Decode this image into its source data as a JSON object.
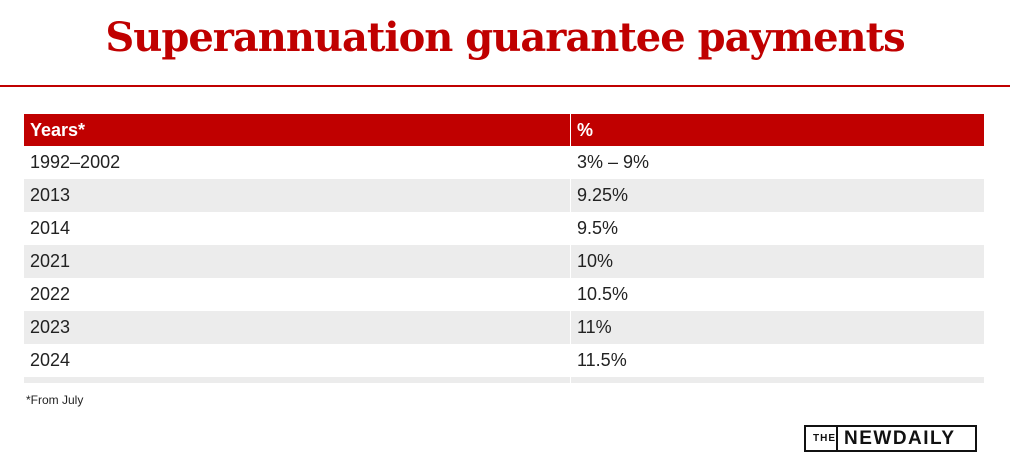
{
  "title": "Superannuation guarantee payments",
  "chart_data": {
    "type": "table",
    "columns": [
      "Years*",
      "%"
    ],
    "rows": [
      [
        "1992–2002",
        "3% – 9%"
      ],
      [
        "2013",
        "9.25%"
      ],
      [
        "2014",
        "9.5%"
      ],
      [
        "2021",
        "10%"
      ],
      [
        "2022",
        "10.5%"
      ],
      [
        "2023",
        "11%"
      ],
      [
        "2024",
        "11.5%"
      ]
    ]
  },
  "footnote": "*From July",
  "logo": {
    "prefix": "THE",
    "name": "NEWDAILY"
  },
  "colors": {
    "accent": "#c00000",
    "row_alt": "#ececec",
    "text": "#222222"
  }
}
